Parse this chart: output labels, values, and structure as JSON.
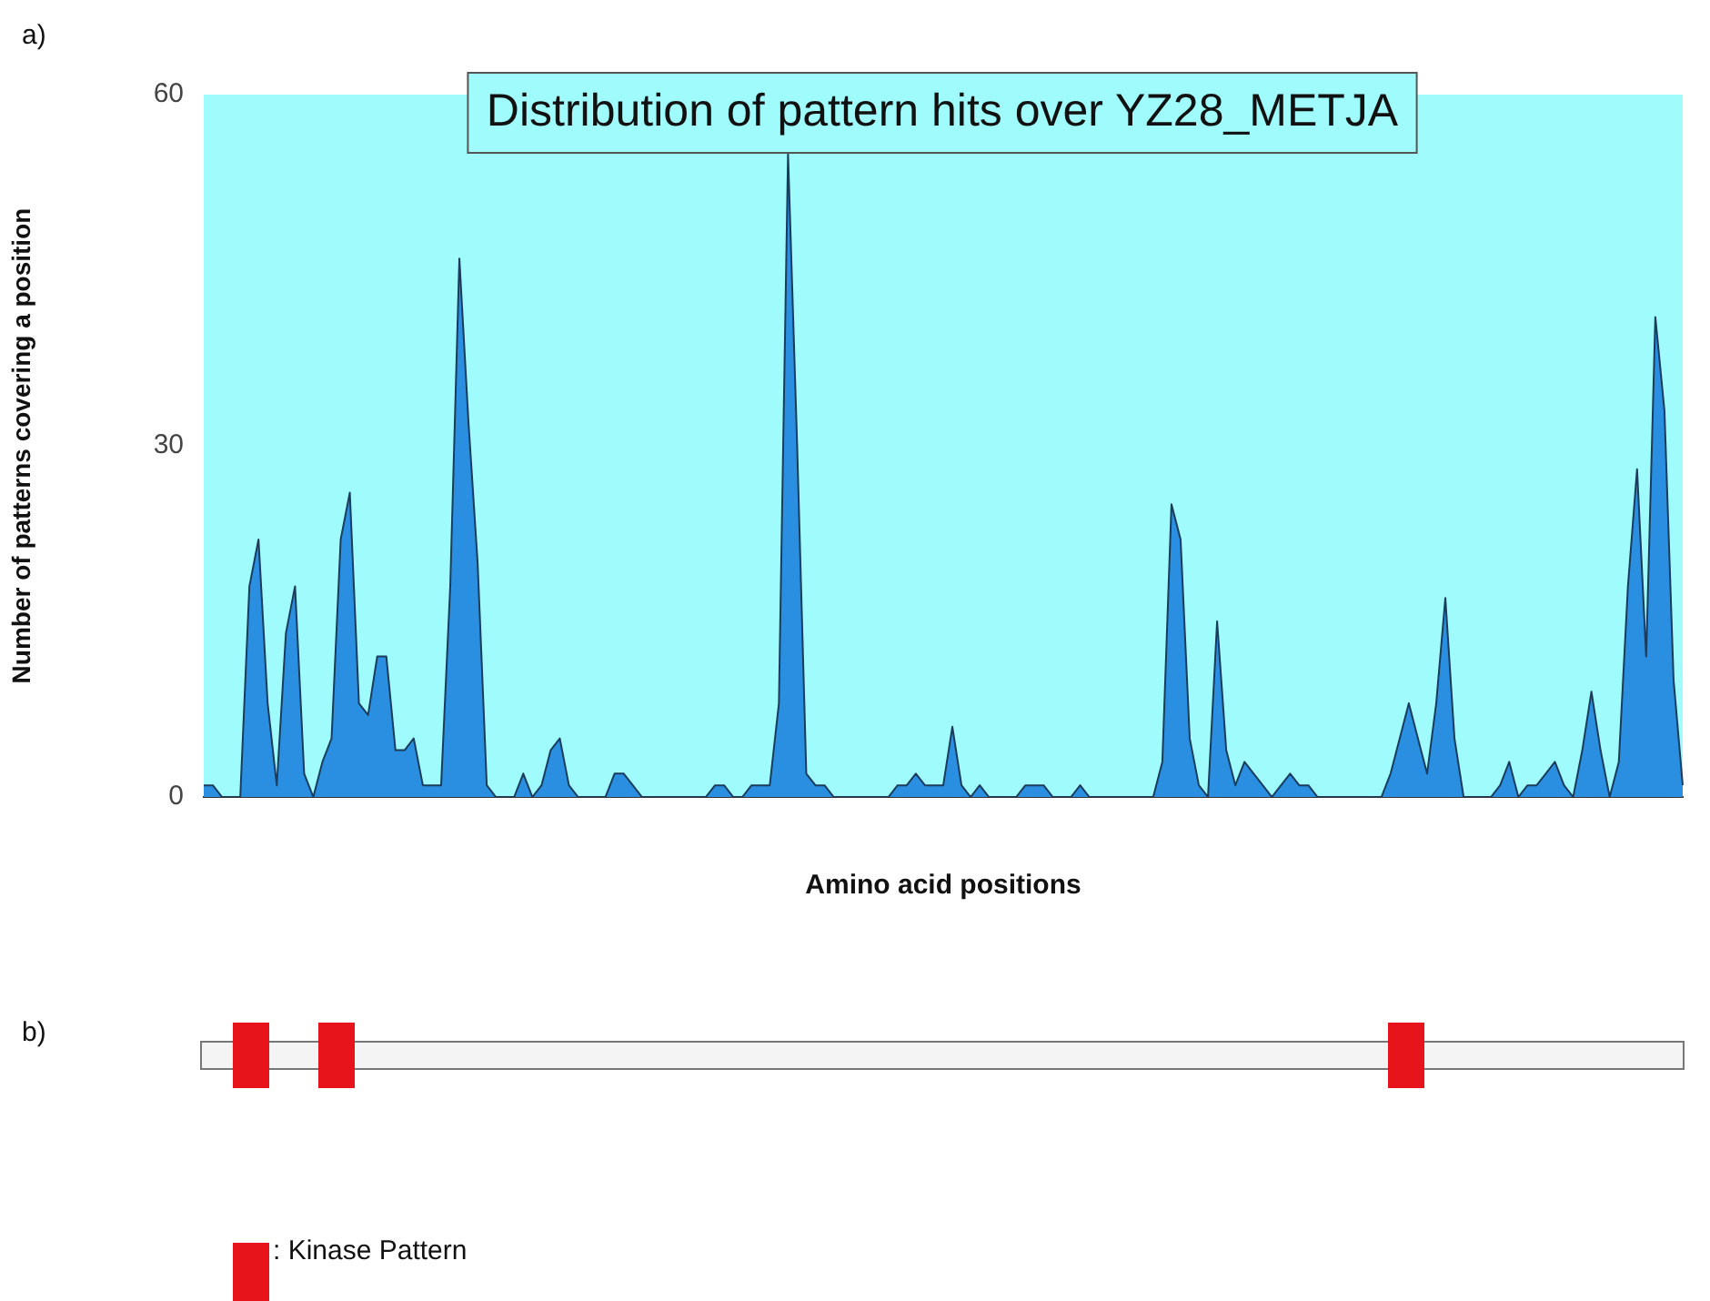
{
  "chart_data": [
    {
      "type": "area",
      "title": "Distribution of pattern hits over YZ28_METJA",
      "xlabel": "Amino acid positions",
      "ylabel": "Number of patterns covering a position",
      "annotations": [
        "a)"
      ],
      "color": "#2a8fe0",
      "ylim": [
        0,
        60
      ],
      "yticks": [
        0,
        30,
        60
      ],
      "tick_labels": "y",
      "grid": false,
      "categories": [
        null,
        null,
        null,
        null,
        null,
        null,
        null,
        null,
        null,
        null,
        null,
        null,
        null,
        null,
        null,
        null,
        null,
        null,
        null,
        null,
        null,
        null,
        null,
        null,
        null,
        null,
        null,
        null,
        null,
        null,
        null,
        null,
        null,
        null,
        null,
        null,
        null,
        null,
        null,
        null,
        null,
        null,
        null,
        null,
        null,
        null,
        null,
        null,
        null,
        null,
        null,
        null,
        null,
        null,
        null,
        null,
        null,
        null,
        null,
        null,
        null,
        null,
        null,
        null,
        null,
        null,
        null,
        null,
        null,
        null,
        null,
        null,
        null,
        null,
        null,
        null,
        null,
        null,
        null,
        null,
        null,
        null,
        null,
        null,
        null,
        null,
        null,
        null,
        null,
        null,
        null,
        null,
        null,
        null,
        null,
        null,
        null,
        null,
        null,
        null,
        null,
        null,
        null,
        null,
        null,
        null,
        null,
        null,
        null,
        null,
        null,
        null,
        null,
        null,
        null,
        null,
        null,
        null,
        null,
        null,
        null,
        null,
        null,
        null,
        null,
        null,
        null,
        null,
        null,
        null,
        null,
        null,
        null,
        null,
        null,
        null,
        null,
        null,
        null,
        null,
        null,
        null,
        null,
        null,
        null,
        null,
        null,
        null,
        null,
        null,
        null,
        null,
        null,
        null,
        null,
        null,
        null,
        null,
        null,
        null,
        null,
        null,
        null
      ],
      "values": [
        1,
        1,
        0,
        0,
        0,
        18,
        22,
        8,
        1,
        14,
        18,
        2,
        0,
        3,
        5,
        22,
        26,
        8,
        7,
        12,
        12,
        4,
        4,
        5,
        1,
        1,
        1,
        18,
        46,
        32,
        20,
        1,
        0,
        0,
        0,
        2,
        0,
        1,
        4,
        5,
        1,
        0,
        0,
        0,
        0,
        2,
        2,
        1,
        0,
        0,
        0,
        0,
        0,
        0,
        0,
        0,
        1,
        1,
        0,
        0,
        1,
        1,
        1,
        8,
        55,
        30,
        2,
        1,
        1,
        0,
        0,
        0,
        0,
        0,
        0,
        0,
        1,
        1,
        2,
        1,
        1,
        1,
        6,
        1,
        0,
        1,
        0,
        0,
        0,
        0,
        1,
        1,
        1,
        0,
        0,
        0,
        1,
        0,
        0,
        0,
        0,
        0,
        0,
        0,
        0,
        3,
        25,
        22,
        5,
        1,
        0,
        15,
        4,
        1,
        3,
        2,
        1,
        0,
        1,
        2,
        1,
        1,
        0,
        0,
        0,
        0,
        0,
        0,
        0,
        0,
        2,
        5,
        8,
        5,
        2,
        8,
        17,
        5,
        0,
        0,
        0,
        0,
        1,
        3,
        0,
        1,
        1,
        2,
        3,
        1,
        0,
        4,
        9,
        4,
        0,
        3,
        18,
        28,
        12,
        41,
        33,
        10,
        1
      ]
    },
    {
      "type": "other",
      "annotations": [
        "b)",
        ": Kinase Pattern"
      ]
    }
  ]
}
